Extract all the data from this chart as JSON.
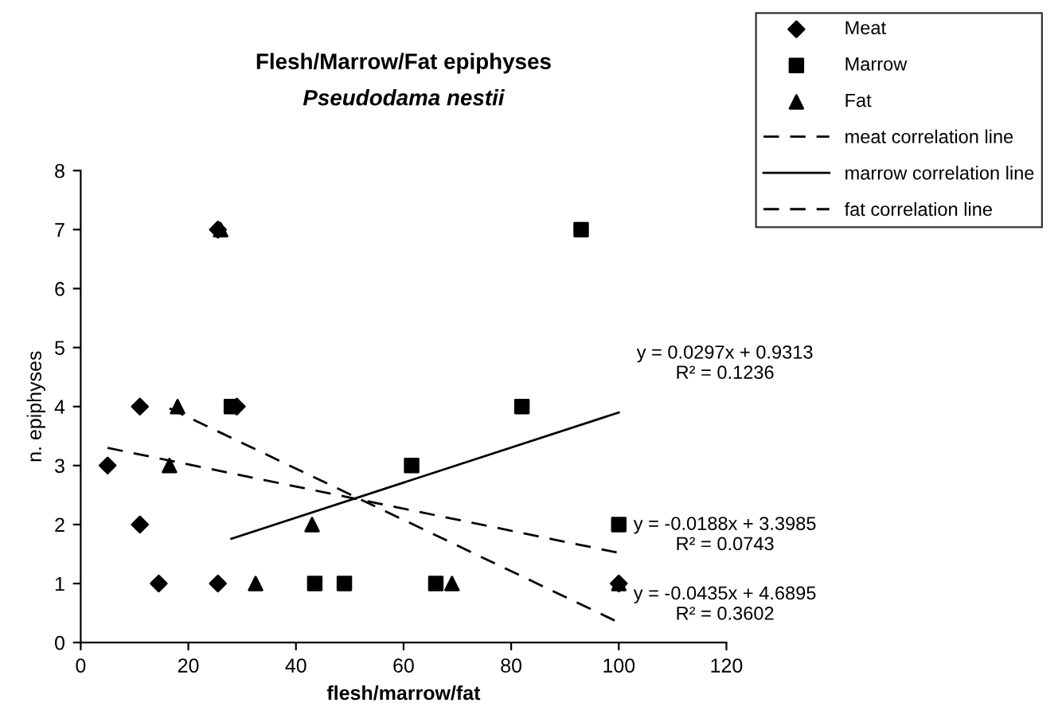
{
  "chart_data": {
    "type": "scatter",
    "title": "Flesh/Marrow/Fat epiphyses",
    "subtitle": "Pseudodama nestii",
    "xlabel": "flesh/marrow/fat",
    "ylabel": "n. epiphyses",
    "xlim": [
      0,
      120
    ],
    "xticks": [
      0,
      20,
      40,
      60,
      80,
      100,
      120
    ],
    "ylim": [
      0,
      8
    ],
    "yticks": [
      0,
      1,
      2,
      3,
      4,
      5,
      6,
      7,
      8
    ],
    "grid": false,
    "legend": "top right",
    "series": [
      {
        "name": "Meat",
        "color": "#000000",
        "marker": "diamond",
        "x": [
          5,
          11,
          11,
          14.5,
          25.5,
          25.5,
          29,
          100
        ],
        "values": [
          3,
          4,
          2,
          1,
          1,
          7,
          4,
          1
        ]
      },
      {
        "name": "Marrow",
        "color": "#000000",
        "marker": "square",
        "x": [
          28,
          43.5,
          49,
          61.5,
          66,
          82,
          93,
          100
        ],
        "values": [
          4,
          1,
          1,
          3,
          1,
          4,
          7,
          2
        ]
      },
      {
        "name": "Fat",
        "color": "#000000",
        "marker": "triangle",
        "x": [
          16.5,
          18,
          26,
          32.5,
          43,
          69,
          100
        ],
        "values": [
          3,
          4,
          7,
          1,
          2,
          1,
          1
        ]
      },
      {
        "name": "meat correlation line",
        "type": "line",
        "color": "#000000",
        "line_style": "dashed",
        "marker": "none",
        "x": [
          5,
          100
        ],
        "values": [
          3.3,
          1.52
        ]
      },
      {
        "name": "marrow correlation line",
        "type": "line",
        "color": "#000000",
        "line_style": "solid",
        "marker": "none",
        "x": [
          28,
          100
        ],
        "values": [
          1.76,
          3.9
        ]
      },
      {
        "name": "fat correlation line",
        "type": "line",
        "color": "#000000",
        "line_style": "dashed",
        "marker": "none",
        "x": [
          16.5,
          100
        ],
        "values": [
          3.97,
          0.34
        ]
      }
    ],
    "annotations": [
      "y = -0.0188x + 3.3985\nR² = 0.0743",
      "y = 0.0297x + 0.9313\nR² = 0.1236",
      "y = -0.0435x + 4.6895\nR² = 0.3602"
    ]
  }
}
